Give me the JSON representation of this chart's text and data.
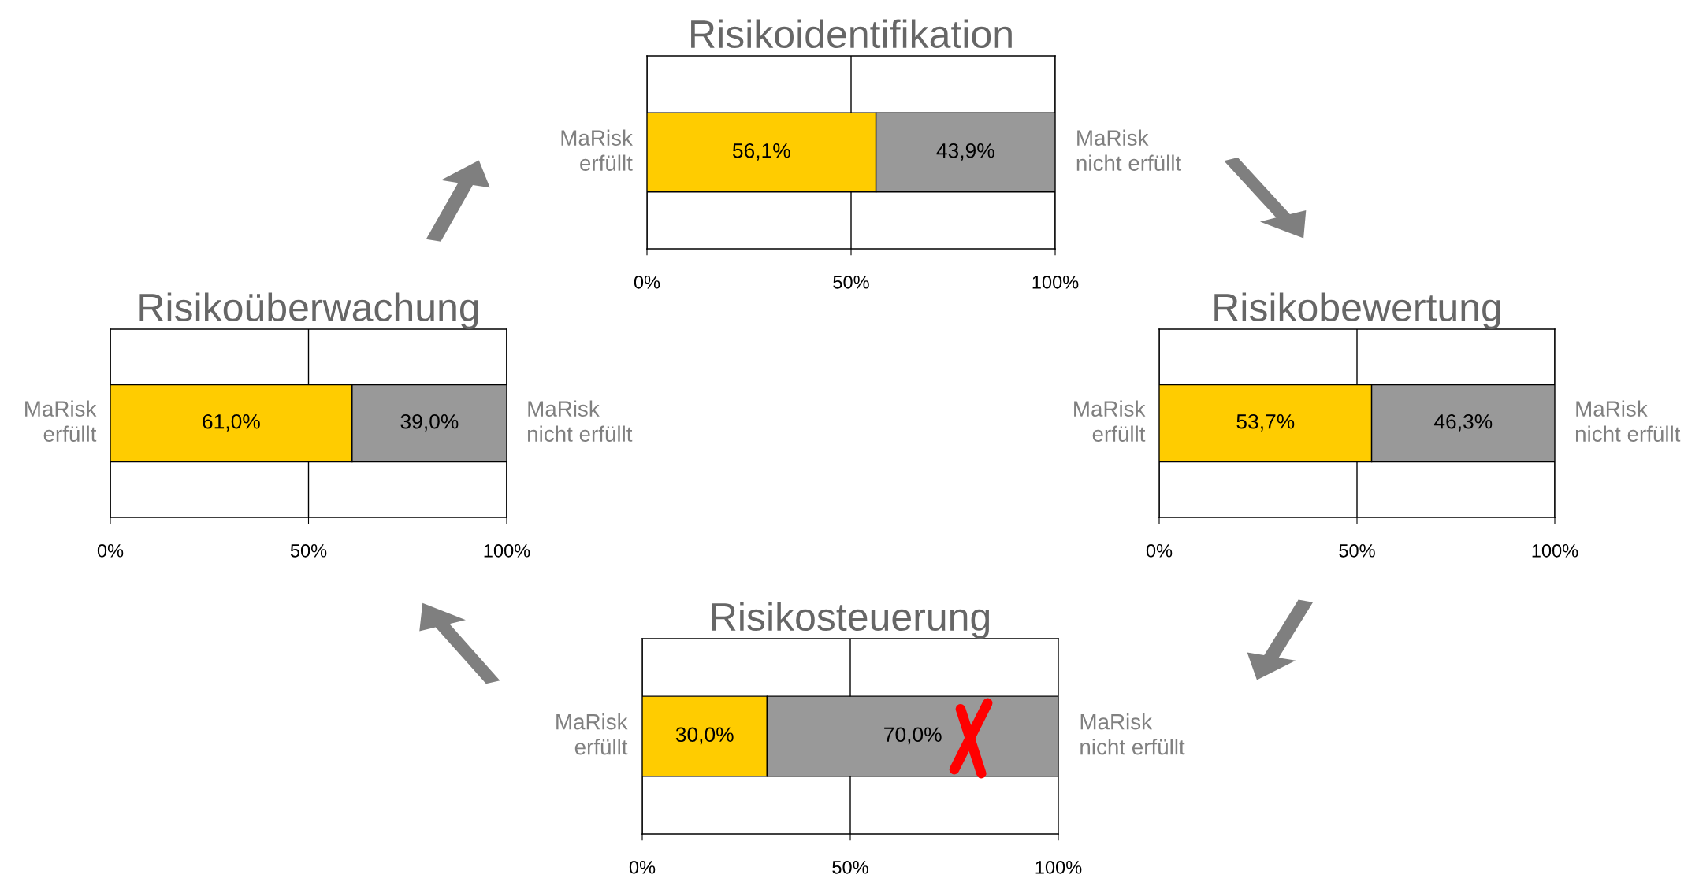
{
  "chart_data": [
    {
      "type": "bar",
      "title": "Risikoidentifikation",
      "orientation": "horizontal",
      "stacked": true,
      "categories": [
        null
      ],
      "xlim": [
        0,
        100
      ],
      "xticks": [
        {
          "value": 0,
          "label": "0%"
        },
        {
          "value": 50,
          "label": "50%"
        },
        {
          "value": 100,
          "label": "100%"
        }
      ],
      "grid": "x",
      "tick_labels": "x",
      "series": [
        {
          "name": "MaRisk\nerfüllt",
          "color": "#ffcc00",
          "values": [
            56.1
          ],
          "value_labels": [
            "56,1%"
          ]
        },
        {
          "name": "MaRisk\nnicht erfüllt",
          "color": "#999999",
          "values": [
            43.9
          ],
          "value_labels": [
            "43,9%"
          ]
        }
      ]
    },
    {
      "type": "bar",
      "title": "Risikoüberwachung",
      "orientation": "horizontal",
      "stacked": true,
      "categories": [
        null
      ],
      "xlim": [
        0,
        100
      ],
      "xticks": [
        {
          "value": 0,
          "label": "0%"
        },
        {
          "value": 50,
          "label": "50%"
        },
        {
          "value": 100,
          "label": "100%"
        }
      ],
      "grid": "x",
      "tick_labels": "x",
      "series": [
        {
          "name": "MaRisk\nerfüllt",
          "color": "#ffcc00",
          "values": [
            61.0
          ],
          "value_labels": [
            "61,0%"
          ]
        },
        {
          "name": "MaRisk\nnicht erfüllt",
          "color": "#999999",
          "values": [
            39.0
          ],
          "value_labels": [
            "39,0%"
          ]
        }
      ]
    },
    {
      "type": "bar",
      "title": "Risikobewertung",
      "orientation": "horizontal",
      "stacked": true,
      "categories": [
        null
      ],
      "xlim": [
        0,
        100
      ],
      "xticks": [
        {
          "value": 0,
          "label": "0%"
        },
        {
          "value": 50,
          "label": "50%"
        },
        {
          "value": 100,
          "label": "100%"
        }
      ],
      "grid": "x",
      "tick_labels": "x",
      "series": [
        {
          "name": "MaRisk\nerfüllt",
          "color": "#ffcc00",
          "values": [
            53.7
          ],
          "value_labels": [
            "53,7%"
          ]
        },
        {
          "name": "MaRisk\nnicht erfüllt",
          "color": "#999999",
          "values": [
            46.3
          ],
          "value_labels": [
            "46,3%"
          ]
        }
      ]
    },
    {
      "type": "bar",
      "title": "Risikosteuerung",
      "orientation": "horizontal",
      "stacked": true,
      "categories": [
        null
      ],
      "xlim": [
        0,
        100
      ],
      "xticks": [
        {
          "value": 0,
          "label": "0%"
        },
        {
          "value": 50,
          "label": "50%"
        },
        {
          "value": 100,
          "label": "100%"
        }
      ],
      "grid": "x",
      "tick_labels": "x",
      "series": [
        {
          "name": "MaRisk\nerfüllt",
          "color": "#ffcc00",
          "values": [
            30.0
          ],
          "value_labels": [
            "30,0%"
          ]
        },
        {
          "name": "MaRisk\nnicht erfüllt",
          "color": "#999999",
          "values": [
            70.0
          ],
          "value_labels": [
            "70,0%"
          ]
        }
      ]
    }
  ]
}
